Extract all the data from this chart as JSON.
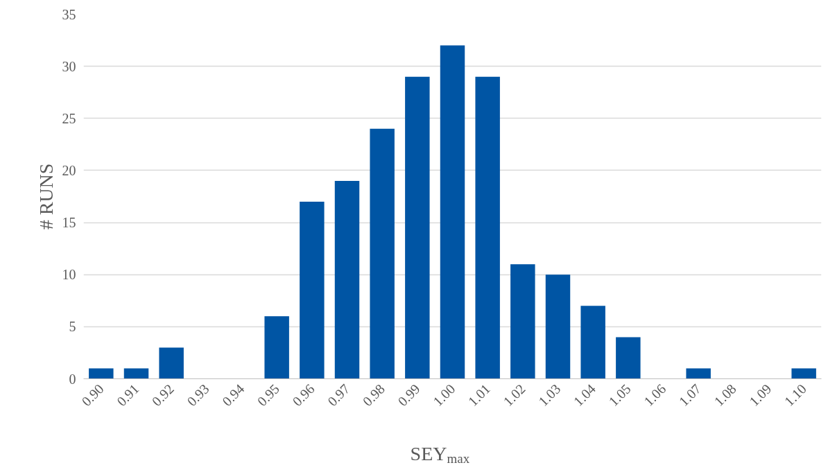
{
  "chart_data": {
    "type": "bar",
    "xlabel": "SEY$_{max}$",
    "ylabel": "# RUNS",
    "categories": [
      "0.90",
      "0.91",
      "0.92",
      "0.93",
      "0.94",
      "0.95",
      "0.96",
      "0.97",
      "0.98",
      "0.99",
      "1.00",
      "1.01",
      "1.02",
      "1.03",
      "1.04",
      "1.05",
      "1.06",
      "1.07",
      "1.08",
      "1.09",
      "1.10"
    ],
    "values": [
      1,
      1,
      3,
      0,
      0,
      6,
      17,
      19,
      24,
      29,
      32,
      29,
      11,
      10,
      7,
      4,
      0,
      1,
      0,
      0,
      1
    ],
    "color": "#0055a4",
    "ylim": [
      0,
      35
    ],
    "yticks": [
      0,
      5,
      10,
      15,
      20,
      25,
      30,
      35
    ],
    "grid": "y"
  }
}
